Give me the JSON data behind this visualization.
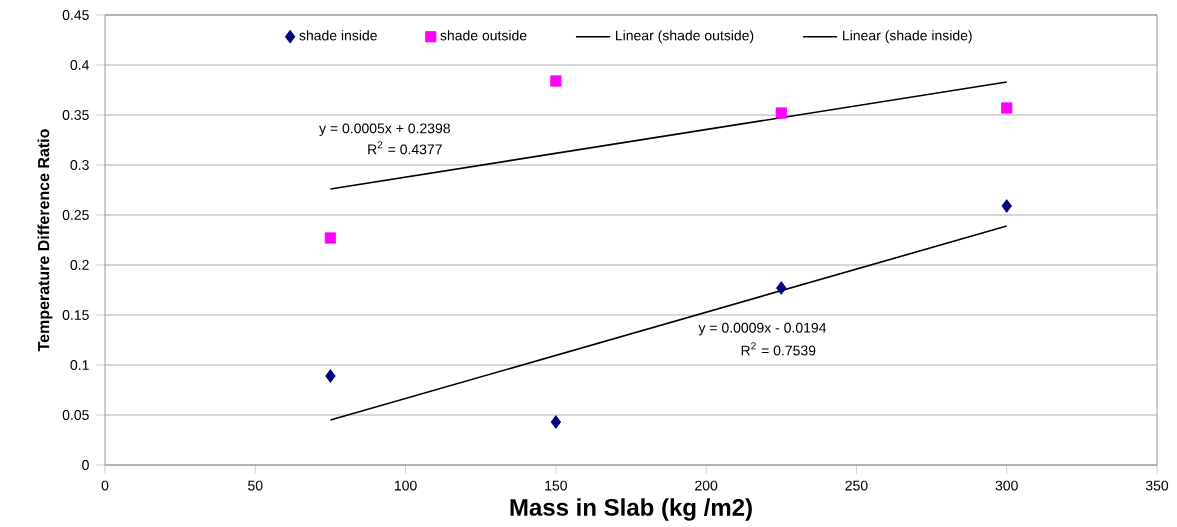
{
  "chart_data": {
    "type": "scatter",
    "xlabel": "Mass in Slab (kg /m2)",
    "ylabel": "Temperature Difference Ratio",
    "x": [
      75,
      150,
      225,
      300
    ],
    "series": [
      {
        "name": "shade inside",
        "color": "#000080",
        "marker": "diamond",
        "values": [
          0.089,
          0.043,
          0.177,
          0.259
        ]
      },
      {
        "name": "shade outside",
        "color": "#ff00ff",
        "marker": "square",
        "values": [
          0.227,
          0.384,
          0.352,
          0.357
        ]
      },
      {
        "name": "Linear (shade outside)",
        "type": "line",
        "color": "#000000",
        "marker": "none",
        "line_style": "solid",
        "values": [
          0.276,
          null,
          null,
          0.383
        ]
      },
      {
        "name": "Linear (shade inside)",
        "type": "line",
        "color": "#000000",
        "marker": "none",
        "line_style": "solid",
        "values": [
          0.045,
          null,
          null,
          0.239
        ]
      }
    ],
    "annotations": [
      "y = 0.0005x + 0.2398",
      "R$^{2}$ = 0.4377",
      "y = 0.0009x - 0.0194",
      "R$^{2}$ = 0.7539"
    ],
    "xlim": [
      0,
      350
    ],
    "xticks": [
      0,
      50,
      100,
      150,
      200,
      250,
      300,
      350
    ],
    "ylim": [
      0,
      0.45
    ],
    "yticks": [
      0,
      0.05,
      0.1,
      0.15,
      0.2,
      0.25,
      0.3,
      0.35,
      0.4,
      0.45
    ],
    "grid": "y",
    "legend": "top"
  }
}
